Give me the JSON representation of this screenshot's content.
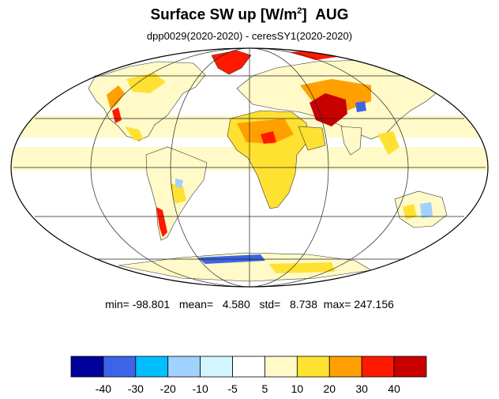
{
  "title": {
    "main": "Surface SW up [W/m",
    "sup": "2",
    "close": "]",
    "month": "AUG"
  },
  "subtitle": "dpp0029(2020-2020) - ceresSY1(2020-2020)",
  "stats": {
    "min_label": "min=",
    "min": "-98.801",
    "mean_label": "mean=",
    "mean": "4.580",
    "std_label": "std=",
    "std": "8.738",
    "max_label": "max=",
    "max": "247.156"
  },
  "colorbar": {
    "colors": [
      "#00009a",
      "#3c64e6",
      "#00bfff",
      "#a0d2ff",
      "#d2f5ff",
      "#ffffff",
      "#fffac8",
      "#ffe132",
      "#ffa000",
      "#ff1900",
      "#c80000"
    ],
    "tick_labels": [
      "-40",
      "-30",
      "-20",
      "-10",
      "-5",
      "5",
      "10",
      "20",
      "30",
      "40"
    ]
  },
  "projection": "mollweide",
  "graticule": {
    "meridians_deg": [
      -120,
      -60,
      0,
      60,
      120
    ],
    "parallels_deg": [
      -60,
      -30,
      0,
      30,
      60
    ]
  },
  "colors": {
    "positive_light": "#fffac8",
    "positive_mid": "#ffe132",
    "positive_strong": "#ffa000",
    "positive_max": "#ff1900",
    "negative_light": "#d2f5ff",
    "negative_mid": "#a0d2ff",
    "negative_strong": "#3c64e6"
  }
}
